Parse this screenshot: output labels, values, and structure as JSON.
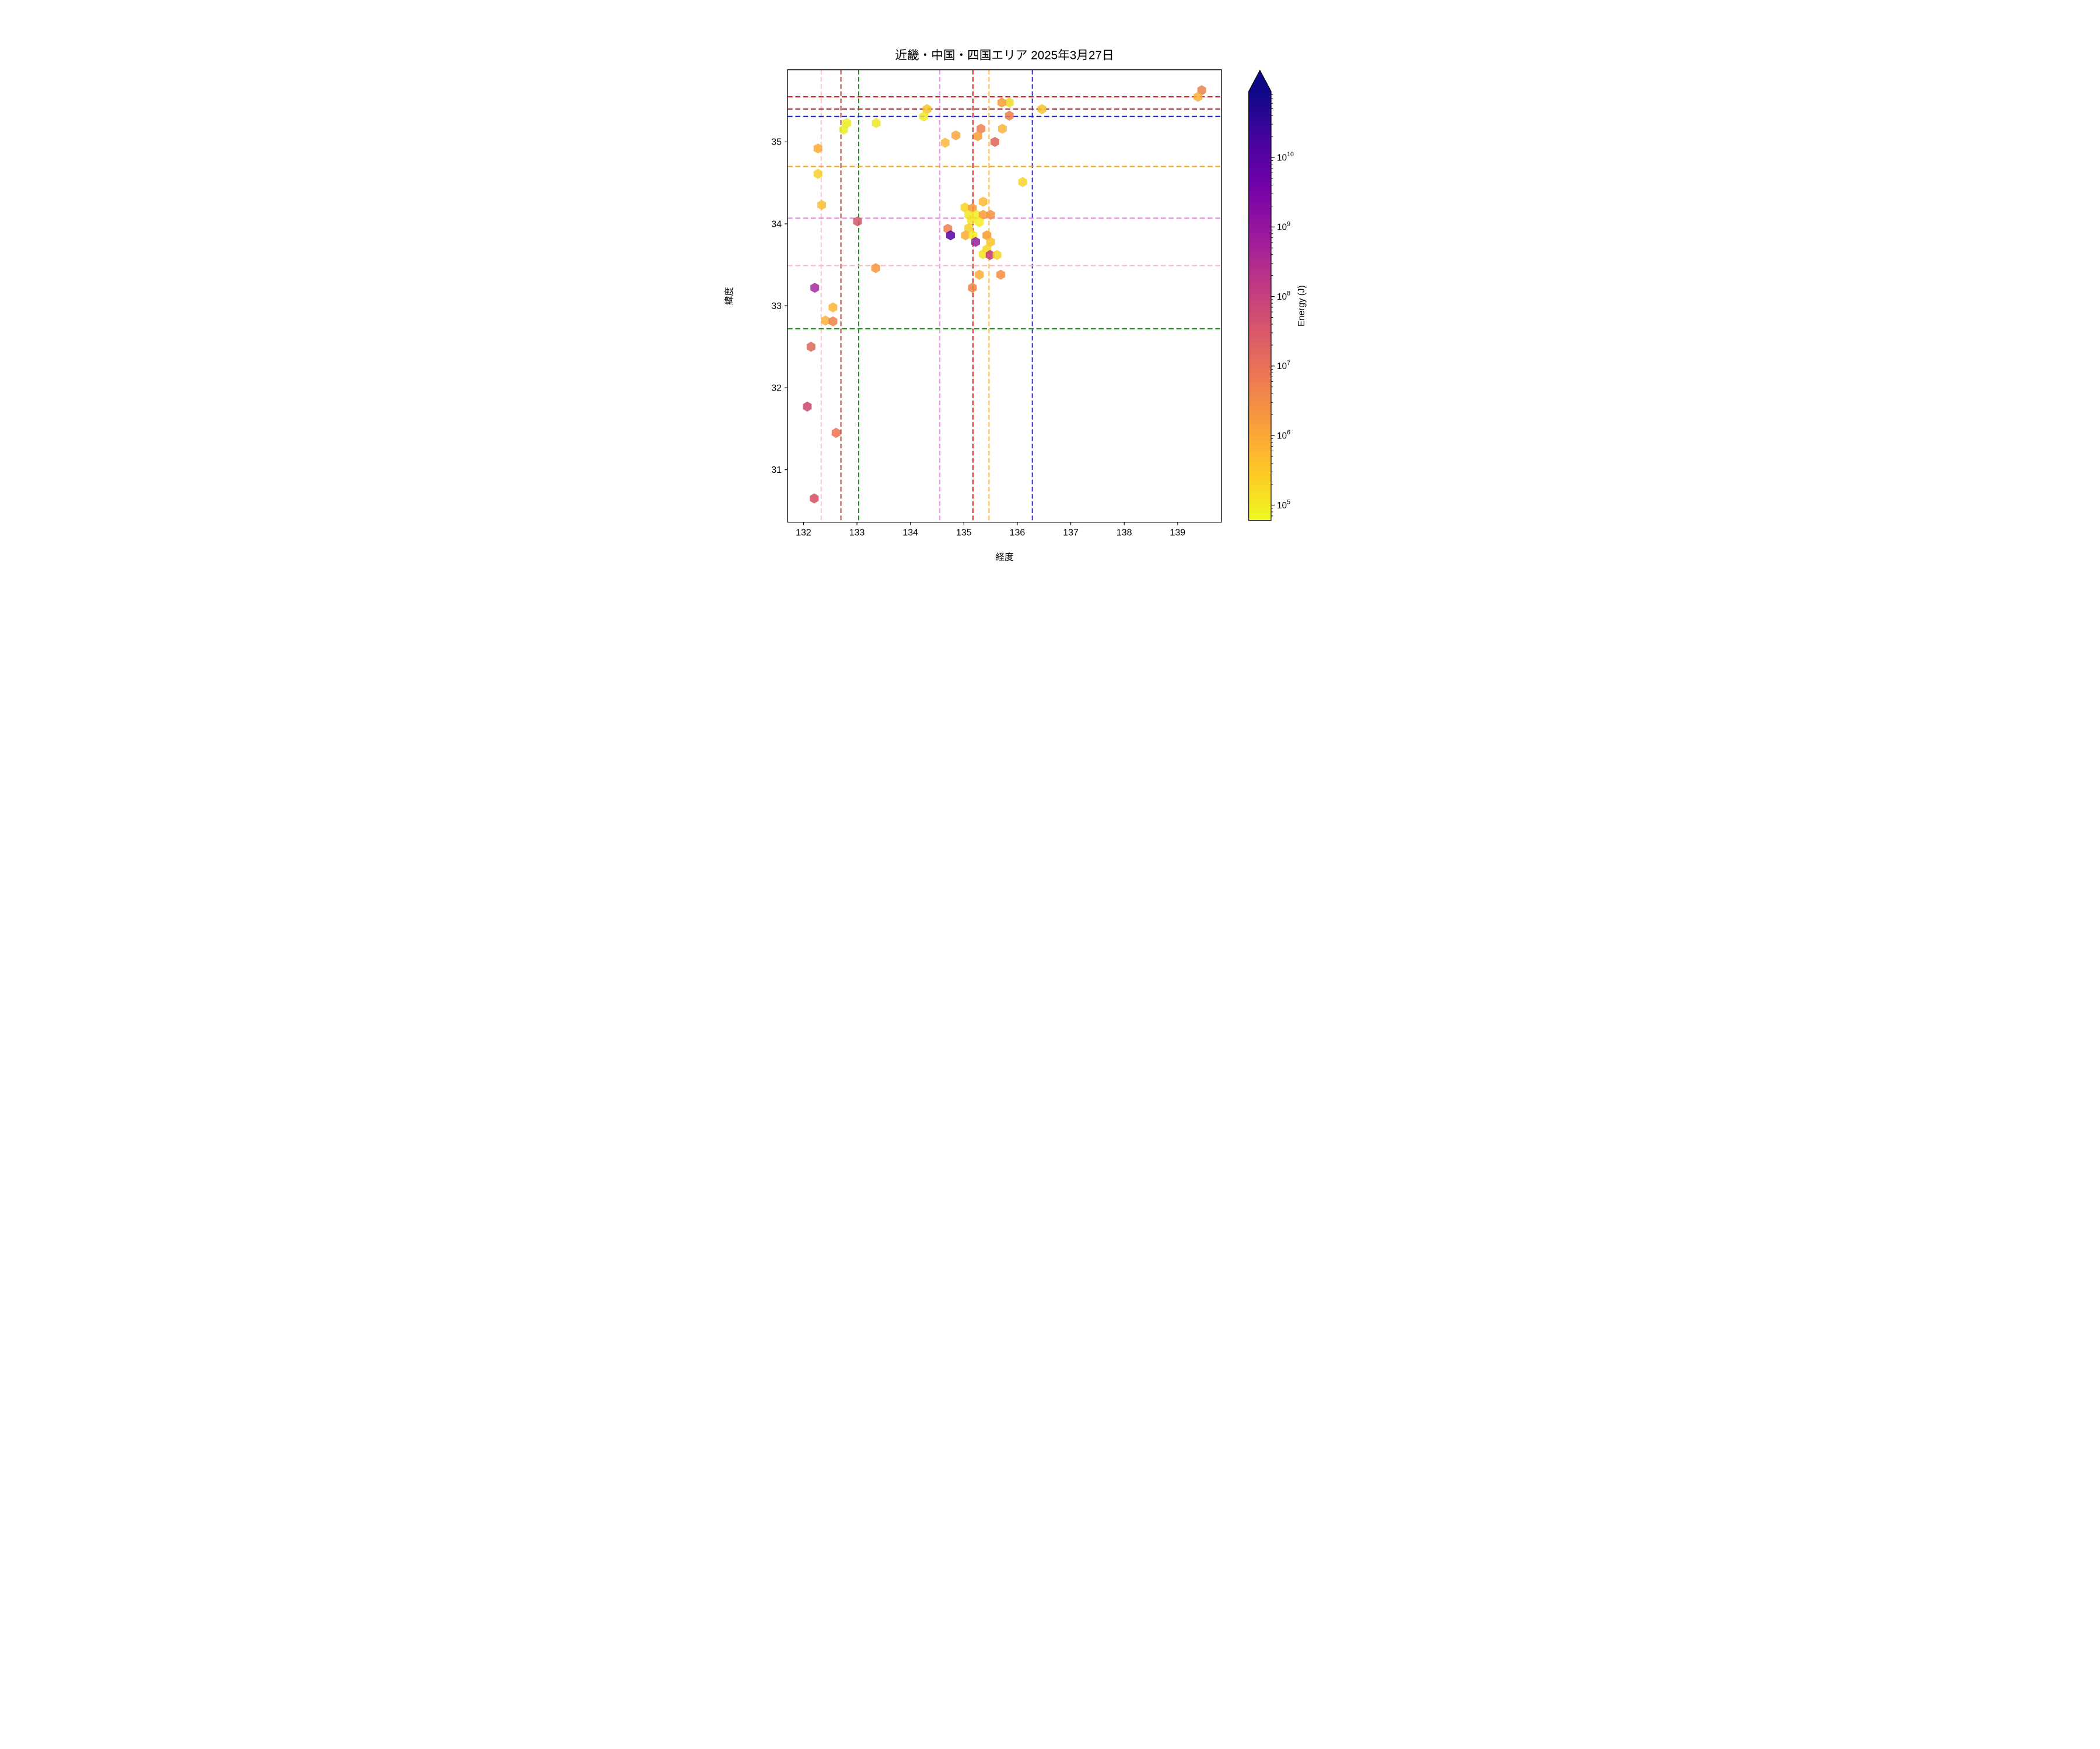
{
  "title": "近畿・中国・四国エリア 2025年3月27日",
  "axes": {
    "xlabel": "経度",
    "ylabel": "緯度",
    "x_ticks": [
      132,
      133,
      134,
      135,
      136,
      137,
      138,
      139
    ],
    "y_ticks": [
      31,
      32,
      33,
      34,
      35
    ]
  },
  "colorbar": {
    "label": "Energy (J)",
    "tick_base": "10",
    "tick_exponents": [
      5,
      6,
      7,
      8,
      9,
      10
    ],
    "log_min": 4.78,
    "log_max": 10.95,
    "colormap": "plasma_r",
    "gradient_top_to_bottom": [
      "#0d0887",
      "#46039f",
      "#7201a8",
      "#9c179e",
      "#bd3786",
      "#d8576b",
      "#ed7953",
      "#fa9e3b",
      "#fdc926",
      "#f0f921"
    ],
    "arrow_color": "#0d0887"
  },
  "ref_lines": {
    "vertical": [
      {
        "lon": 132.33,
        "color": "#ffb6c1"
      },
      {
        "lon": 132.7,
        "color": "#a52a2a"
      },
      {
        "lon": 133.03,
        "color": "#0f8f0f"
      },
      {
        "lon": 134.55,
        "color": "#ee82ee"
      },
      {
        "lon": 135.17,
        "color": "#ff0d0d"
      },
      {
        "lon": 135.47,
        "color": "#ffa408"
      },
      {
        "lon": 136.28,
        "color": "#1414ff"
      }
    ],
    "horizontal": [
      {
        "lat": 35.55,
        "color": "#ff0d0d"
      },
      {
        "lat": 35.4,
        "color": "#a52a2a"
      },
      {
        "lat": 35.31,
        "color": "#1414ff"
      },
      {
        "lat": 34.7,
        "color": "#ffa408"
      },
      {
        "lat": 34.07,
        "color": "#ee82ee"
      },
      {
        "lat": 33.49,
        "color": "#ffb6c1"
      },
      {
        "lat": 32.72,
        "color": "#0f8f0f"
      }
    ]
  },
  "chart_data": {
    "type": "scatter",
    "marker": "hexagon",
    "xlabel": "経度",
    "ylabel": "緯度",
    "xlim": [
      131.7,
      139.82
    ],
    "ylim": [
      30.36,
      35.88
    ],
    "grid": false,
    "legend": "colorbar Energy (J), log scale 1e5–1e10, plasma reversed",
    "points": [
      {
        "lon": 139.45,
        "lat": 35.63,
        "color": "#e8834f",
        "energy_j": 5000000.0
      },
      {
        "lon": 139.38,
        "lat": 35.55,
        "color": "#f9b03a",
        "energy_j": 800000.0
      },
      {
        "lon": 136.46,
        "lat": 35.4,
        "color": "#f5c32c",
        "energy_j": 400000.0
      },
      {
        "lon": 135.85,
        "lat": 35.48,
        "color": "#f2da26",
        "energy_j": 180000.0
      },
      {
        "lon": 135.71,
        "lat": 35.48,
        "color": "#f69f38",
        "energy_j": 1500000.0
      },
      {
        "lon": 135.85,
        "lat": 35.32,
        "color": "#ed7b4e",
        "energy_j": 5500000.0
      },
      {
        "lon": 135.72,
        "lat": 35.16,
        "color": "#fbb339",
        "energy_j": 700000.0
      },
      {
        "lon": 135.32,
        "lat": 35.16,
        "color": "#ee8050",
        "energy_j": 6000000.0
      },
      {
        "lon": 135.26,
        "lat": 35.07,
        "color": "#f99c33",
        "energy_j": 1800000.0
      },
      {
        "lon": 135.58,
        "lat": 35.0,
        "color": "#da6455",
        "energy_j": 18000000.0
      },
      {
        "lon": 134.85,
        "lat": 35.08,
        "color": "#faa53b",
        "energy_j": 1100000.0
      },
      {
        "lon": 134.65,
        "lat": 34.99,
        "color": "#fbb838",
        "energy_j": 650000.0
      },
      {
        "lon": 134.31,
        "lat": 35.4,
        "color": "#f5c62b",
        "energy_j": 380000.0
      },
      {
        "lon": 134.25,
        "lat": 35.31,
        "color": "#eee926",
        "energy_j": 100000.0
      },
      {
        "lon": 133.36,
        "lat": 35.23,
        "color": "#ebe822",
        "energy_j": 110000.0
      },
      {
        "lon": 132.81,
        "lat": 35.23,
        "color": "#ecec20",
        "energy_j": 90000.0
      },
      {
        "lon": 132.75,
        "lat": 35.15,
        "color": "#e9ed24",
        "energy_j": 85000.0
      },
      {
        "lon": 132.27,
        "lat": 34.92,
        "color": "#fbaa32",
        "energy_j": 1000000.0
      },
      {
        "lon": 132.27,
        "lat": 34.61,
        "color": "#f8d028",
        "energy_j": 300000.0
      },
      {
        "lon": 136.1,
        "lat": 34.51,
        "color": "#f8d42a",
        "energy_j": 280000.0
      },
      {
        "lon": 132.34,
        "lat": 34.23,
        "color": "#fbbd31",
        "energy_j": 550000.0
      },
      {
        "lon": 133.01,
        "lat": 34.03,
        "color": "#d25566",
        "energy_j": 40000000.0
      },
      {
        "lon": 135.36,
        "lat": 34.27,
        "color": "#fbb92f",
        "energy_j": 600000.0
      },
      {
        "lon": 135.02,
        "lat": 34.2,
        "color": "#f7d222",
        "energy_j": 220000.0
      },
      {
        "lon": 135.16,
        "lat": 34.19,
        "color": "#f8992f",
        "energy_j": 2000000.0
      },
      {
        "lon": 135.09,
        "lat": 34.11,
        "color": "#f2e626",
        "energy_j": 140000.0
      },
      {
        "lon": 135.24,
        "lat": 34.11,
        "color": "#f0ed1e",
        "energy_j": 75000.0
      },
      {
        "lon": 135.36,
        "lat": 34.11,
        "color": "#f89d35",
        "energy_j": 1900000.0
      },
      {
        "lon": 135.5,
        "lat": 34.11,
        "color": "#f58f3b",
        "energy_j": 3000000.0
      },
      {
        "lon": 135.14,
        "lat": 34.05,
        "color": "#f5e126",
        "energy_j": 130000.0
      },
      {
        "lon": 135.29,
        "lat": 34.02,
        "color": "#f3ee1c",
        "energy_j": 70000.0
      },
      {
        "lon": 135.09,
        "lat": 33.95,
        "color": "#f6cf25",
        "energy_j": 320000.0
      },
      {
        "lon": 134.7,
        "lat": 33.94,
        "color": "#ee7c53",
        "energy_j": 6000000.0
      },
      {
        "lon": 134.75,
        "lat": 33.86,
        "color": "#5601a4",
        "energy_j": 4000000000.0
      },
      {
        "lon": 135.03,
        "lat": 33.86,
        "color": "#fbaa31",
        "energy_j": 1050000.0
      },
      {
        "lon": 135.17,
        "lat": 33.86,
        "color": "#f1ed1d",
        "energy_j": 78000.0
      },
      {
        "lon": 135.22,
        "lat": 33.78,
        "color": "#8f21a0",
        "energy_j": 900000000.0
      },
      {
        "lon": 135.43,
        "lat": 33.86,
        "color": "#f9992f",
        "energy_j": 2100000.0
      },
      {
        "lon": 135.5,
        "lat": 33.78,
        "color": "#f8c32c",
        "energy_j": 450000.0
      },
      {
        "lon": 135.43,
        "lat": 33.69,
        "color": "#f6d629",
        "energy_j": 250000.0
      },
      {
        "lon": 135.36,
        "lat": 33.63,
        "color": "#f2e322",
        "energy_j": 160000.0
      },
      {
        "lon": 135.49,
        "lat": 33.62,
        "color": "#c13572",
        "energy_j": 130000000.0
      },
      {
        "lon": 135.62,
        "lat": 33.62,
        "color": "#f2d824",
        "energy_j": 200000.0
      },
      {
        "lon": 135.29,
        "lat": 33.38,
        "color": "#fbac33",
        "energy_j": 950000.0
      },
      {
        "lon": 135.69,
        "lat": 33.38,
        "color": "#f68d3e",
        "energy_j": 3200000.0
      },
      {
        "lon": 135.16,
        "lat": 33.22,
        "color": "#f0823f",
        "energy_j": 4500000.0
      },
      {
        "lon": 133.35,
        "lat": 33.46,
        "color": "#f9943c",
        "energy_j": 2400000.0
      },
      {
        "lon": 132.21,
        "lat": 33.22,
        "color": "#a32a9e",
        "energy_j": 500000000.0
      },
      {
        "lon": 132.55,
        "lat": 32.98,
        "color": "#fbb534",
        "energy_j": 750000.0
      },
      {
        "lon": 132.41,
        "lat": 32.82,
        "color": "#fbb13b",
        "energy_j": 800000.0
      },
      {
        "lon": 132.55,
        "lat": 32.81,
        "color": "#ef8049",
        "energy_j": 5000000.0
      },
      {
        "lon": 132.14,
        "lat": 32.5,
        "color": "#dd6658",
        "energy_j": 15000000.0
      },
      {
        "lon": 132.07,
        "lat": 31.77,
        "color": "#c74868",
        "energy_j": 70000000.0
      },
      {
        "lon": 132.61,
        "lat": 31.45,
        "color": "#ed7050",
        "energy_j": 6000000.0
      },
      {
        "lon": 132.2,
        "lat": 30.65,
        "color": "#d44d62",
        "energy_j": 35000000.0
      }
    ]
  }
}
